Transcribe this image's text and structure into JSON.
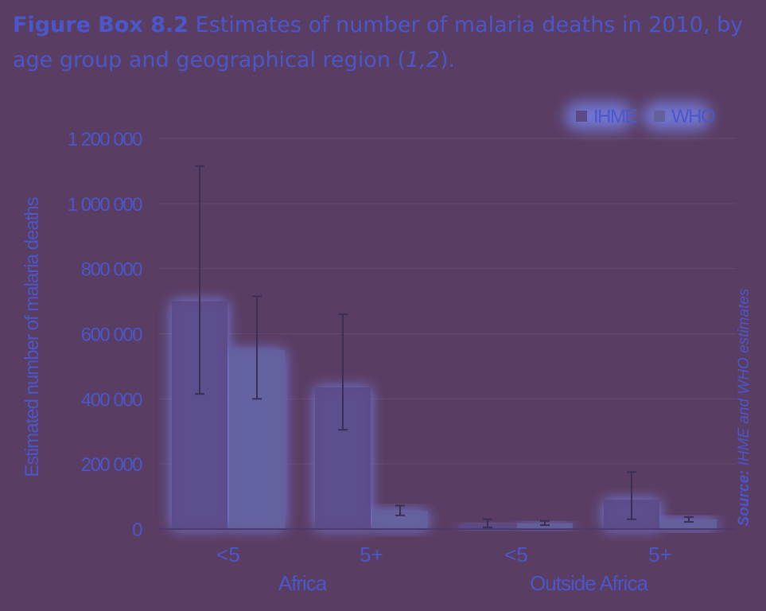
{
  "title": {
    "label": "Figure Box 8.2",
    "text_before": "Estimates of number of malaria deaths in 2010, by age group and geographical region (",
    "refs": "1,2",
    "text_after": ")."
  },
  "source": {
    "label": "Source:",
    "text": "IHME and WHO estimates"
  },
  "colors": {
    "background": "#5a3d62",
    "text": "#4b56c9",
    "ihme": "#5b4a86",
    "who": "#63619b",
    "glow": "#7a8cff",
    "gridline": "#66496c",
    "errorbar": "#3a2f55"
  },
  "chart_data": {
    "type": "bar",
    "title": "",
    "xlabel": "",
    "ylabel": "Estimated number of malaria deaths",
    "ylim": [
      0,
      1200000
    ],
    "yticks": [
      0,
      200000,
      400000,
      600000,
      800000,
      1000000,
      1200000
    ],
    "ytick_labels": [
      "0",
      "200 000",
      "400 000",
      "600 000",
      "800 000",
      "1 000 000",
      "1 200 000"
    ],
    "grid": true,
    "legend_position": "top-right",
    "categories": [
      "<5",
      "5+",
      "<5",
      "5+"
    ],
    "groups": [
      {
        "label": "Africa",
        "categories": [
          "<5",
          "5+"
        ]
      },
      {
        "label": "Outside Africa",
        "categories": [
          "<5",
          "5+"
        ]
      }
    ],
    "series": [
      {
        "name": "IHME",
        "values": [
          700000,
          435000,
          14000,
          90000
        ],
        "error_low": [
          415000,
          305000,
          5000,
          30000
        ],
        "error_high": [
          1115000,
          660000,
          30000,
          175000
        ]
      },
      {
        "name": "WHO",
        "values": [
          550000,
          55000,
          18000,
          30000
        ],
        "error_low": [
          400000,
          42000,
          12000,
          22000
        ],
        "error_high": [
          715000,
          72000,
          25000,
          37000
        ]
      }
    ]
  }
}
